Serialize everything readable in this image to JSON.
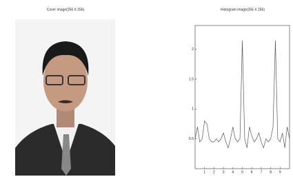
{
  "image_panel": {
    "title": "Cover image(256 X 256)"
  },
  "chart_data": {
    "type": "line",
    "title": "Histogram image(256 X 256)",
    "x": [
      0,
      0.25,
      0.5,
      0.75,
      1,
      1.25,
      1.5,
      1.75,
      2,
      2.25,
      2.5,
      2.75,
      3,
      3.25,
      3.5,
      3.75,
      4,
      4.25,
      4.5,
      4.75,
      5,
      5.25,
      5.5,
      5.75,
      6,
      6.25,
      6.5,
      6.75,
      7,
      7.25,
      7.5,
      7.75,
      8,
      8.25,
      8.5,
      8.75,
      9,
      9.25,
      9.5,
      9.75,
      10
    ],
    "values": [
      0.5,
      0.7,
      0.45,
      0.5,
      0.8,
      0.75,
      0.5,
      0.45,
      0.45,
      0.5,
      0.45,
      0.5,
      0.6,
      0.45,
      0.35,
      0.5,
      0.7,
      0.5,
      0.45,
      0.5,
      2.15,
      0.5,
      0.35,
      0.7,
      0.55,
      0.45,
      0.5,
      0.6,
      0.45,
      0.35,
      0.5,
      0.45,
      0.5,
      0.7,
      2.15,
      0.5,
      0.45,
      0.6,
      0.35,
      0.7,
      0.5
    ],
    "color": "#555555",
    "xlim": [
      0,
      10
    ],
    "xticks": [
      1,
      2,
      3,
      4,
      5,
      6,
      7,
      8,
      9
    ],
    "ylim": [
      0,
      2.4
    ],
    "yticks": [
      0.5,
      1,
      1.5,
      2
    ]
  }
}
